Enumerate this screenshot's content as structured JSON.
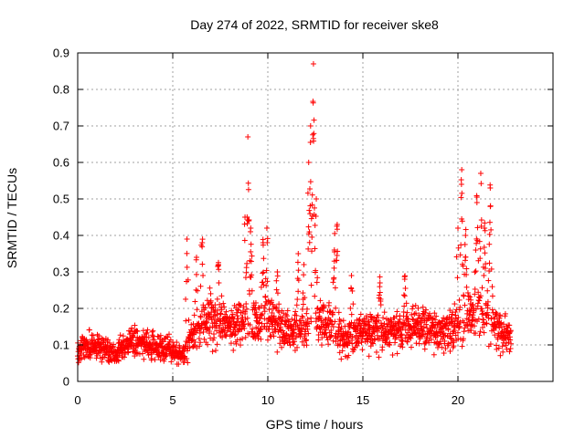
{
  "chart_data": {
    "type": "scatter",
    "title": "Day 274 of 2022, SRMTID for receiver ske8",
    "xlabel": "GPS time / hours",
    "ylabel": "SRMTID / TECUs",
    "xlim": [
      0,
      25
    ],
    "ylim": [
      0,
      0.9
    ],
    "xticks": [
      0,
      5,
      10,
      15,
      20
    ],
    "xtick_labels": [
      "0",
      "5",
      "10",
      "15",
      "20"
    ],
    "yticks": [
      0,
      0.1,
      0.2,
      0.3,
      0.4,
      0.5,
      0.6,
      0.7,
      0.8,
      0.9
    ],
    "ytick_labels": [
      "0",
      "0.1",
      "0.2",
      "0.3",
      "0.4",
      "0.5",
      "0.6",
      "0.7",
      "0.8",
      "0.9"
    ],
    "grid": true,
    "marker": "plus",
    "series": [
      {
        "name": "SRMTID",
        "color": "#ff0000",
        "baseline": [
          {
            "t": 0.0,
            "v": 0.09
          },
          {
            "t": 1.0,
            "v": 0.1
          },
          {
            "t": 2.0,
            "v": 0.07
          },
          {
            "t": 2.7,
            "v": 0.11
          },
          {
            "t": 4.0,
            "v": 0.1
          },
          {
            "t": 5.0,
            "v": 0.08
          },
          {
            "t": 5.6,
            "v": 0.07
          },
          {
            "t": 6.0,
            "v": 0.13
          },
          {
            "t": 7.0,
            "v": 0.18
          },
          {
            "t": 8.0,
            "v": 0.15
          },
          {
            "t": 9.0,
            "v": 0.16
          },
          {
            "t": 10.0,
            "v": 0.17
          },
          {
            "t": 11.0,
            "v": 0.14
          },
          {
            "t": 12.0,
            "v": 0.14
          },
          {
            "t": 13.0,
            "v": 0.17
          },
          {
            "t": 14.0,
            "v": 0.12
          },
          {
            "t": 15.0,
            "v": 0.14
          },
          {
            "t": 16.0,
            "v": 0.13
          },
          {
            "t": 17.0,
            "v": 0.14
          },
          {
            "t": 18.0,
            "v": 0.15
          },
          {
            "t": 19.0,
            "v": 0.14
          },
          {
            "t": 20.0,
            "v": 0.15
          },
          {
            "t": 21.0,
            "v": 0.19
          },
          {
            "t": 22.0,
            "v": 0.15
          },
          {
            "t": 22.8,
            "v": 0.12
          }
        ],
        "peaks": [
          {
            "t": 8.95,
            "v": 0.67
          },
          {
            "t": 8.8,
            "v": 0.45
          },
          {
            "t": 9.1,
            "v": 0.42
          },
          {
            "t": 9.95,
            "v": 0.42
          },
          {
            "t": 9.75,
            "v": 0.38
          },
          {
            "t": 10.5,
            "v": 0.3
          },
          {
            "t": 11.6,
            "v": 0.35
          },
          {
            "t": 11.9,
            "v": 0.32
          },
          {
            "t": 12.4,
            "v": 0.87
          },
          {
            "t": 12.25,
            "v": 0.7
          },
          {
            "t": 12.15,
            "v": 0.6
          },
          {
            "t": 12.55,
            "v": 0.5
          },
          {
            "t": 13.65,
            "v": 0.43
          },
          {
            "t": 13.5,
            "v": 0.36
          },
          {
            "t": 5.75,
            "v": 0.39
          },
          {
            "t": 6.25,
            "v": 0.34
          },
          {
            "t": 6.55,
            "v": 0.38
          },
          {
            "t": 7.4,
            "v": 0.32
          },
          {
            "t": 14.4,
            "v": 0.29
          },
          {
            "t": 15.9,
            "v": 0.27
          },
          {
            "t": 17.2,
            "v": 0.28
          },
          {
            "t": 20.2,
            "v": 0.58
          },
          {
            "t": 20.0,
            "v": 0.42
          },
          {
            "t": 20.4,
            "v": 0.4
          },
          {
            "t": 21.2,
            "v": 0.57
          },
          {
            "t": 21.0,
            "v": 0.49
          },
          {
            "t": 21.7,
            "v": 0.53
          },
          {
            "t": 21.4,
            "v": 0.42
          }
        ]
      }
    ]
  }
}
